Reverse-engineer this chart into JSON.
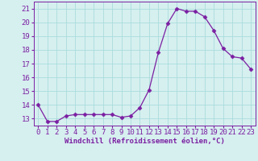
{
  "x": [
    0,
    1,
    2,
    3,
    4,
    5,
    6,
    7,
    8,
    9,
    10,
    11,
    12,
    13,
    14,
    15,
    16,
    17,
    18,
    19,
    20,
    21,
    22,
    23
  ],
  "y": [
    14.0,
    12.8,
    12.8,
    13.2,
    13.3,
    13.3,
    13.3,
    13.3,
    13.3,
    13.1,
    13.2,
    13.8,
    15.1,
    17.8,
    19.9,
    21.0,
    20.8,
    20.8,
    20.4,
    19.4,
    18.1,
    17.5,
    17.4,
    16.6
  ],
  "line_color": "#7b1fa2",
  "marker": "D",
  "marker_size": 2.5,
  "bg_color": "#d6efef",
  "grid_color": "#aadcdc",
  "xlabel": "Windchill (Refroidissement éolien,°C)",
  "xlim": [
    -0.5,
    23.5
  ],
  "ylim": [
    12.5,
    21.5
  ],
  "yticks": [
    13,
    14,
    15,
    16,
    17,
    18,
    19,
    20,
    21
  ],
  "xticks": [
    0,
    1,
    2,
    3,
    4,
    5,
    6,
    7,
    8,
    9,
    10,
    11,
    12,
    13,
    14,
    15,
    16,
    17,
    18,
    19,
    20,
    21,
    22,
    23
  ],
  "tick_fontsize": 6.5,
  "xlabel_fontsize": 6.5
}
